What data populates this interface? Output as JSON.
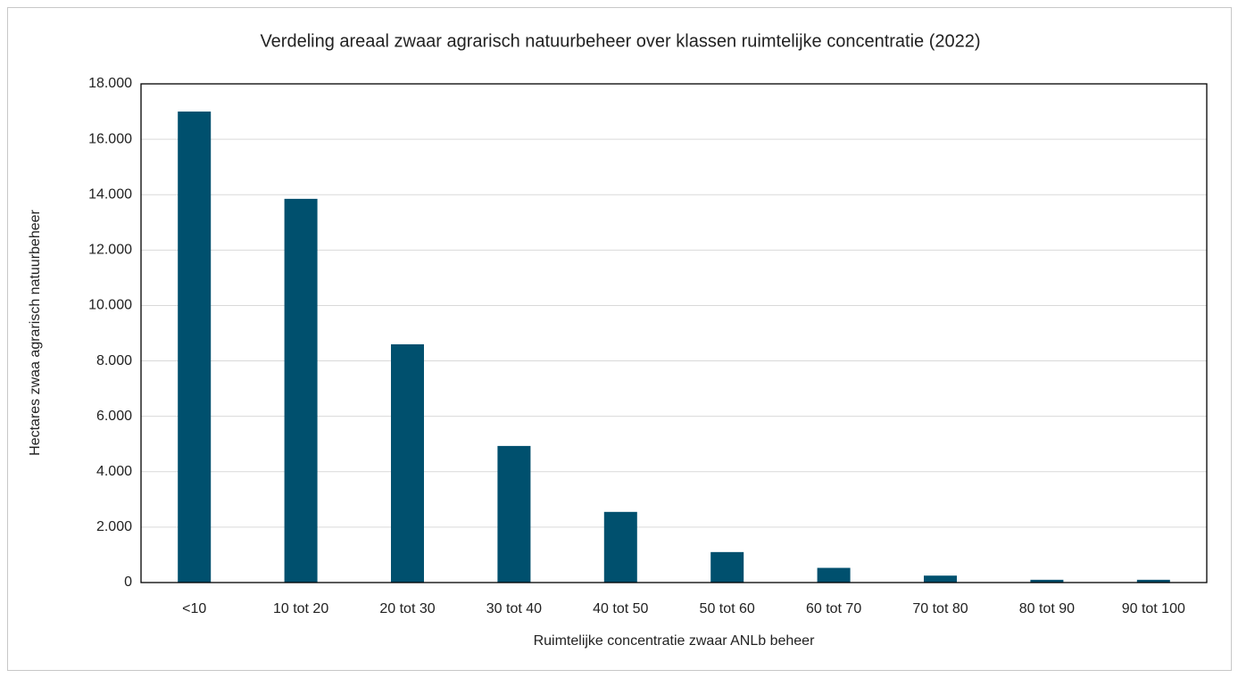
{
  "chart_data": {
    "type": "bar",
    "title": "Verdeling areaal zwaar agrarisch natuurbeheer over klassen ruimtelijke concentratie (2022)",
    "x_label": "Ruimtelijke concentratie zwaar ANLb beheer",
    "y_label": "Hectares zwaa agrarisch natuurbeheer",
    "categories": [
      "<10",
      "10 tot 20",
      "20 tot 30",
      "30 tot 40",
      "40 tot 50",
      "50 tot 60",
      "60 tot 70",
      "70 tot 80",
      "80 tot 90",
      "90 tot 100"
    ],
    "values": [
      17000,
      13850,
      8600,
      4930,
      2550,
      1100,
      530,
      250,
      100,
      100
    ],
    "color": "#00506e",
    "ylim": [
      0,
      18000
    ],
    "yticks": [
      0,
      {
        "value": 2000,
        "label": "2.000"
      },
      {
        "value": 4000,
        "label": "4.000"
      },
      {
        "value": 6000,
        "label": "6.000"
      },
      {
        "value": 8000,
        "label": "8.000"
      },
      {
        "value": 10000,
        "label": "10.000"
      },
      {
        "value": 12000,
        "label": "12.000"
      },
      {
        "value": 14000,
        "label": "14.000"
      },
      {
        "value": 16000,
        "label": "16.000"
      },
      {
        "value": 18000,
        "label": "18.000"
      }
    ],
    "grid": true
  }
}
